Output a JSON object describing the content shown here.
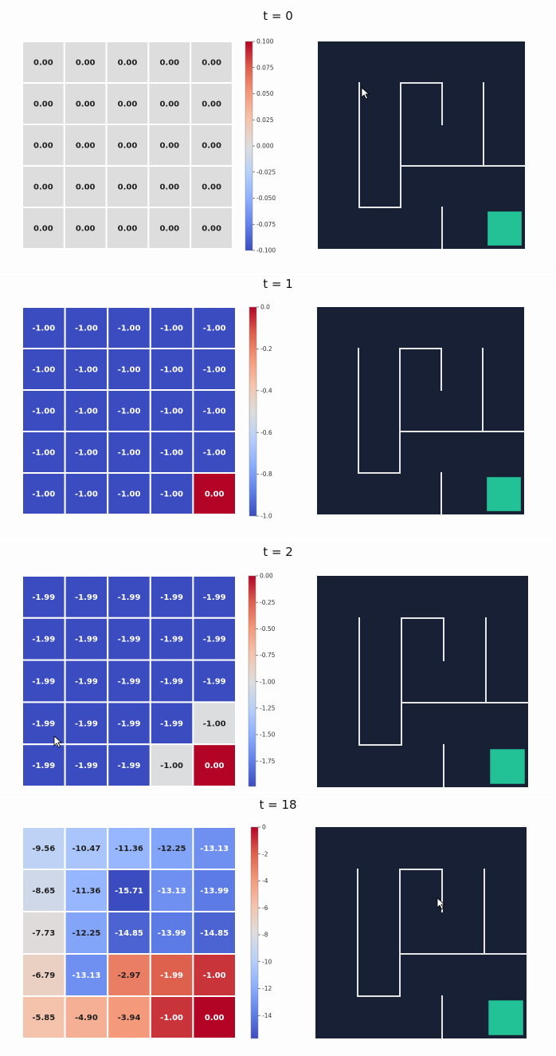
{
  "chart_data": [
    {
      "type": "heatmap",
      "title": "t = 0",
      "values": [
        [
          0.0,
          0.0,
          0.0,
          0.0,
          0.0
        ],
        [
          0.0,
          0.0,
          0.0,
          0.0,
          0.0
        ],
        [
          0.0,
          0.0,
          0.0,
          0.0,
          0.0
        ],
        [
          0.0,
          0.0,
          0.0,
          0.0,
          0.0
        ],
        [
          0.0,
          0.0,
          0.0,
          0.0,
          0.0
        ]
      ],
      "labels": [
        [
          "0.00",
          "0.00",
          "0.00",
          "0.00",
          "0.00"
        ],
        [
          "0.00",
          "0.00",
          "0.00",
          "0.00",
          "0.00"
        ],
        [
          "0.00",
          "0.00",
          "0.00",
          "0.00",
          "0.00"
        ],
        [
          "0.00",
          "0.00",
          "0.00",
          "0.00",
          "0.00"
        ],
        [
          "0.00",
          "0.00",
          "0.00",
          "0.00",
          "0.00"
        ]
      ],
      "vmin": -0.1,
      "vmax": 0.1,
      "colorbar_ticks": [
        "0.100",
        "0.075",
        "0.050",
        "0.025",
        "0.000",
        "-0.025",
        "-0.050",
        "-0.075",
        "-0.100"
      ],
      "colormap": "coolwarm"
    },
    {
      "type": "heatmap",
      "title": "t = 1",
      "values": [
        [
          -1.0,
          -1.0,
          -1.0,
          -1.0,
          -1.0
        ],
        [
          -1.0,
          -1.0,
          -1.0,
          -1.0,
          -1.0
        ],
        [
          -1.0,
          -1.0,
          -1.0,
          -1.0,
          -1.0
        ],
        [
          -1.0,
          -1.0,
          -1.0,
          -1.0,
          -1.0
        ],
        [
          -1.0,
          -1.0,
          -1.0,
          -1.0,
          0.0
        ]
      ],
      "labels": [
        [
          "-1.00",
          "-1.00",
          "-1.00",
          "-1.00",
          "-1.00"
        ],
        [
          "-1.00",
          "-1.00",
          "-1.00",
          "-1.00",
          "-1.00"
        ],
        [
          "-1.00",
          "-1.00",
          "-1.00",
          "-1.00",
          "-1.00"
        ],
        [
          "-1.00",
          "-1.00",
          "-1.00",
          "-1.00",
          "-1.00"
        ],
        [
          "-1.00",
          "-1.00",
          "-1.00",
          "-1.00",
          "0.00"
        ]
      ],
      "vmin": -1.0,
      "vmax": 0.0,
      "colorbar_ticks": [
        "0.0",
        "-0.2",
        "-0.4",
        "-0.6",
        "-0.8",
        "-1.0"
      ],
      "colormap": "coolwarm"
    },
    {
      "type": "heatmap",
      "title": "t = 2",
      "values": [
        [
          -1.99,
          -1.99,
          -1.99,
          -1.99,
          -1.99
        ],
        [
          -1.99,
          -1.99,
          -1.99,
          -1.99,
          -1.99
        ],
        [
          -1.99,
          -1.99,
          -1.99,
          -1.99,
          -1.99
        ],
        [
          -1.99,
          -1.99,
          -1.99,
          -1.99,
          -1.0
        ],
        [
          -1.99,
          -1.99,
          -1.99,
          -1.0,
          0.0
        ]
      ],
      "labels": [
        [
          "-1.99",
          "-1.99",
          "-1.99",
          "-1.99",
          "-1.99"
        ],
        [
          "-1.99",
          "-1.99",
          "-1.99",
          "-1.99",
          "-1.99"
        ],
        [
          "-1.99",
          "-1.99",
          "-1.99",
          "-1.99",
          "-1.99"
        ],
        [
          "-1.99",
          "-1.99",
          "-1.99",
          "-1.99",
          "-1.00"
        ],
        [
          "-1.99",
          "-1.99",
          "-1.99",
          "-1.00",
          "0.00"
        ]
      ],
      "vmin": -1.99,
      "vmax": 0.0,
      "colorbar_ticks": [
        "0.00",
        "-0.25",
        "-0.50",
        "-0.75",
        "-1.00",
        "-1.25",
        "-1.50",
        "-1.75"
      ],
      "colormap": "coolwarm"
    },
    {
      "type": "heatmap",
      "title": "t = 18",
      "values": [
        [
          -9.56,
          -10.47,
          -11.36,
          -12.25,
          -13.13
        ],
        [
          -8.65,
          -11.36,
          -15.71,
          -13.13,
          -13.99
        ],
        [
          -7.73,
          -12.25,
          -14.85,
          -13.99,
          -14.85
        ],
        [
          -6.79,
          -13.13,
          -2.97,
          -1.99,
          -1.0
        ],
        [
          -5.85,
          -4.9,
          -3.94,
          -1.0,
          0.0
        ]
      ],
      "labels": [
        [
          "-9.56",
          "-10.47",
          "-11.36",
          "-12.25",
          "-13.13"
        ],
        [
          "-8.65",
          "-11.36",
          "-15.71",
          "-13.13",
          "-13.99"
        ],
        [
          "-7.73",
          "-12.25",
          "-14.85",
          "-13.99",
          "-14.85"
        ],
        [
          "-6.79",
          "-13.13",
          "-2.97",
          "-1.99",
          "-1.00"
        ],
        [
          "-5.85",
          "-4.90",
          "-3.94",
          "-1.00",
          "0.00"
        ]
      ],
      "vmin": -15.71,
      "vmax": 0.0,
      "colorbar_ticks": [
        "0",
        "-2",
        "-4",
        "-6",
        "-8",
        "-10",
        "-12",
        "-14"
      ],
      "colormap": "coolwarm"
    }
  ],
  "maze": {
    "background": "#172035",
    "wall_color": "#e6e6e6",
    "goal_color": "#22c296",
    "goal_cell": [
      4,
      4
    ]
  },
  "colors": {
    "cell_border": "#ffffff",
    "text_light": "#ffffff",
    "text_dark": "#1f1f1f"
  }
}
